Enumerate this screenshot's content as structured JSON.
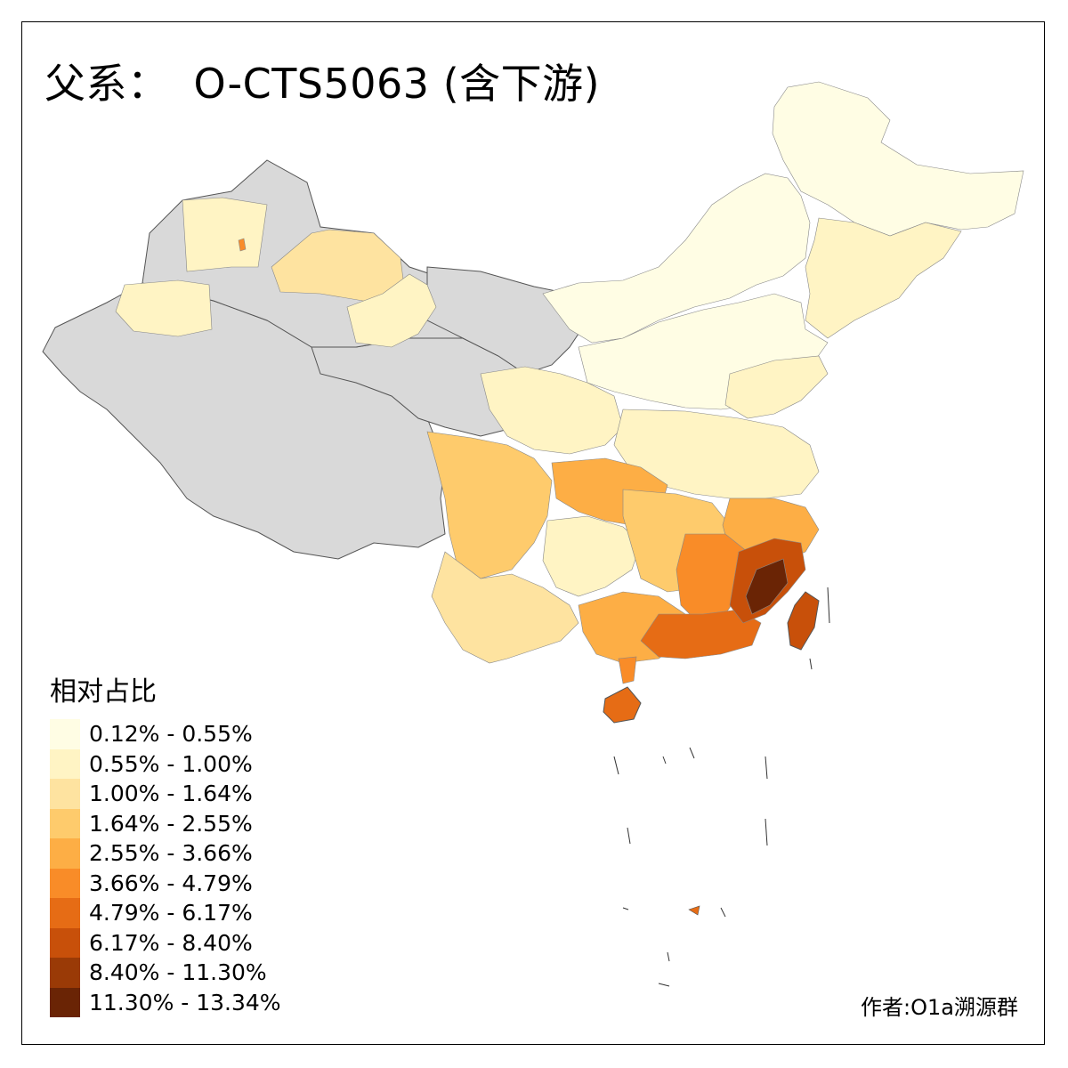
{
  "title": {
    "prefix": "父系：",
    "haplogroup": "O-CTS5063 (含下游)"
  },
  "legend": {
    "title": "相对占比",
    "items": [
      {
        "label": "0.12% - 0.55%",
        "color": "#FFFDE4"
      },
      {
        "label": "0.55% - 1.00%",
        "color": "#FFF4C4"
      },
      {
        "label": "1.00% - 1.64%",
        "color": "#FEE3A0"
      },
      {
        "label": "1.64% - 2.55%",
        "color": "#FECB6C"
      },
      {
        "label": "2.55% - 3.66%",
        "color": "#FDAE45"
      },
      {
        "label": "3.66% - 4.79%",
        "color": "#F98C28"
      },
      {
        "label": "4.79% - 6.17%",
        "color": "#E66C15"
      },
      {
        "label": "6.17% - 8.40%",
        "color": "#C8500A"
      },
      {
        "label": "8.40% - 11.30%",
        "color": "#9A3A06"
      },
      {
        "label": "11.30% - 13.34%",
        "color": "#6A2405"
      }
    ]
  },
  "no_data_color": "#D9D9D9",
  "author": "作者:O1a溯源群"
}
